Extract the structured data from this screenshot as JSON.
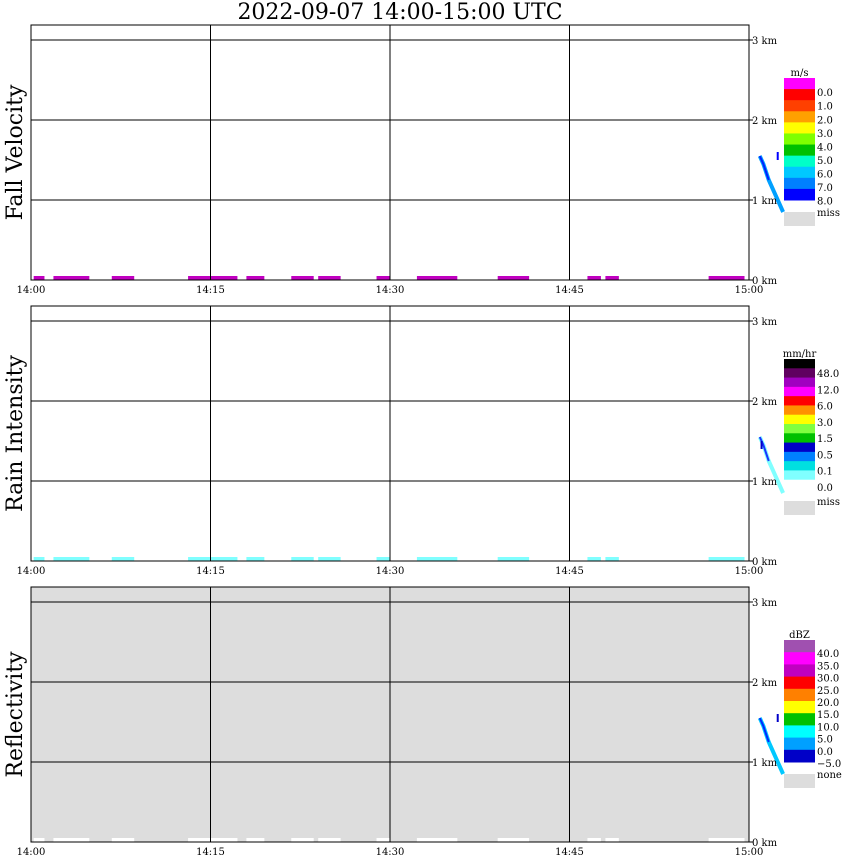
{
  "title": "2022-09-07  14:00-15:00 UTC",
  "x_ticks": [
    "14:00",
    "14:15",
    "14:30",
    "14:45",
    "15:00"
  ],
  "y_ticks": [
    "0 km",
    "1 km",
    "2 km",
    "3 km"
  ],
  "chart_data": [
    {
      "type": "heatmap",
      "title": "Fall Velocity",
      "ylabel": "Fall Velocity",
      "xlim": [
        "14:00",
        "15:00"
      ],
      "ylim_km": [
        0,
        3.2
      ],
      "background": "#ffffff",
      "colorbar": {
        "unit": "m/s",
        "colors": [
          "#0000ff",
          "#0080ff",
          "#00c8ff",
          "#00ffc8",
          "#00c000",
          "#80ff00",
          "#ffff00",
          "#ffa000",
          "#ff4000",
          "#ff0000",
          "#ff00ff"
        ],
        "labels": [
          "0.0",
          "1.0",
          "2.0",
          "3.0",
          "4.0",
          "5.0",
          "6.0",
          "7.0",
          "8.0"
        ],
        "miss_label": "miss"
      },
      "features": [
        {
          "kind": "ground_band",
          "color": "#c000c0",
          "segments": [
            [
              0.6,
              3
            ],
            [
              5,
              13
            ],
            [
              18,
              23
            ],
            [
              35,
              46
            ],
            [
              48,
              52
            ],
            [
              58,
              63
            ],
            [
              64,
              69
            ],
            [
              77,
              80
            ],
            [
              86,
              94
            ],
            [
              93,
              95
            ],
            [
              104,
              111
            ],
            [
              124,
              127
            ],
            [
              128,
              131
            ],
            [
              151,
              159
            ]
          ]
        },
        {
          "kind": "shaft",
          "color": "#00a0ff",
          "points": [
            [
              40.6,
              1.55
            ],
            [
              40.8,
              1.45
            ],
            [
              41.1,
              1.25
            ],
            [
              41.4,
              1.1
            ],
            [
              41.7,
              0.95
            ],
            [
              41.9,
              0.85
            ]
          ]
        },
        {
          "kind": "blob",
          "color": "#0000ff",
          "t": 41.6,
          "z": 1.55
        }
      ]
    },
    {
      "type": "heatmap",
      "title": "Rain Intensity",
      "ylabel": "Rain Intensity",
      "xlim": [
        "14:00",
        "15:00"
      ],
      "ylim_km": [
        0,
        3.2
      ],
      "background": "#ffffff",
      "colorbar": {
        "unit": "mm/hr",
        "colors": [
          "#ffffff",
          "#80ffff",
          "#00e0e0",
          "#0080ff",
          "#0000c8",
          "#00c000",
          "#80ff40",
          "#ffff00",
          "#ff9000",
          "#ff0000",
          "#ff00ff",
          "#a000c0",
          "#600060",
          "#000000"
        ],
        "labels": [
          "48.0",
          "12.0",
          "6.0",
          "3.0",
          "1.5",
          "0.5",
          "0.1",
          "0.0"
        ],
        "miss_label": "miss"
      },
      "features": [
        {
          "kind": "ground_band",
          "color": "#80ffff",
          "segments": [
            [
              0.6,
              3
            ],
            [
              5,
              13
            ],
            [
              18,
              23
            ],
            [
              35,
              46
            ],
            [
              48,
              52
            ],
            [
              58,
              63
            ],
            [
              64,
              69
            ],
            [
              77,
              80
            ],
            [
              86,
              94
            ],
            [
              93,
              95
            ],
            [
              104,
              111
            ],
            [
              124,
              127
            ],
            [
              128,
              131
            ],
            [
              151,
              159
            ]
          ]
        },
        {
          "kind": "shaft",
          "color": "#80ffff",
          "points": [
            [
              40.6,
              1.55
            ],
            [
              40.8,
              1.45
            ],
            [
              41.1,
              1.25
            ],
            [
              41.4,
              1.1
            ],
            [
              41.7,
              0.95
            ],
            [
              41.9,
              0.85
            ]
          ]
        },
        {
          "kind": "blob",
          "color": "#0000c8",
          "t": 40.7,
          "z": 1.45
        }
      ]
    },
    {
      "type": "heatmap",
      "title": "Reflectivity",
      "ylabel": "Reflectivity",
      "xlim": [
        "14:00",
        "15:00"
      ],
      "ylim_km": [
        0,
        3.2
      ],
      "background": "#dddddd",
      "colorbar": {
        "unit": "dBZ",
        "colors": [
          "#0000c8",
          "#00a0ff",
          "#00ffff",
          "#00c000",
          "#ffff00",
          "#ff8000",
          "#ff0000",
          "#c000c0",
          "#ff00ff",
          "#a050b0"
        ],
        "labels": [
          "40.0",
          "35.0",
          "30.0",
          "25.0",
          "20.0",
          "15.0",
          "10.0",
          "5.0",
          "0.0",
          "−5.0"
        ],
        "miss_label": "none"
      },
      "features": [
        {
          "kind": "ground_band",
          "color": "#ffffff",
          "segments": [
            [
              0.6,
              3
            ],
            [
              5,
              13
            ],
            [
              18,
              23
            ],
            [
              35,
              46
            ],
            [
              48,
              52
            ],
            [
              58,
              63
            ],
            [
              64,
              69
            ],
            [
              77,
              80
            ],
            [
              86,
              94
            ],
            [
              93,
              95
            ],
            [
              104,
              111
            ],
            [
              124,
              127
            ],
            [
              128,
              131
            ],
            [
              151,
              159
            ]
          ]
        },
        {
          "kind": "shaft",
          "color": "#00c8ff",
          "points": [
            [
              40.6,
              1.55
            ],
            [
              40.8,
              1.45
            ],
            [
              41.1,
              1.25
            ],
            [
              41.4,
              1.1
            ],
            [
              41.7,
              0.95
            ],
            [
              41.9,
              0.85
            ]
          ]
        },
        {
          "kind": "blob",
          "color": "#0000c8",
          "t": 41.6,
          "z": 1.55
        }
      ]
    }
  ]
}
